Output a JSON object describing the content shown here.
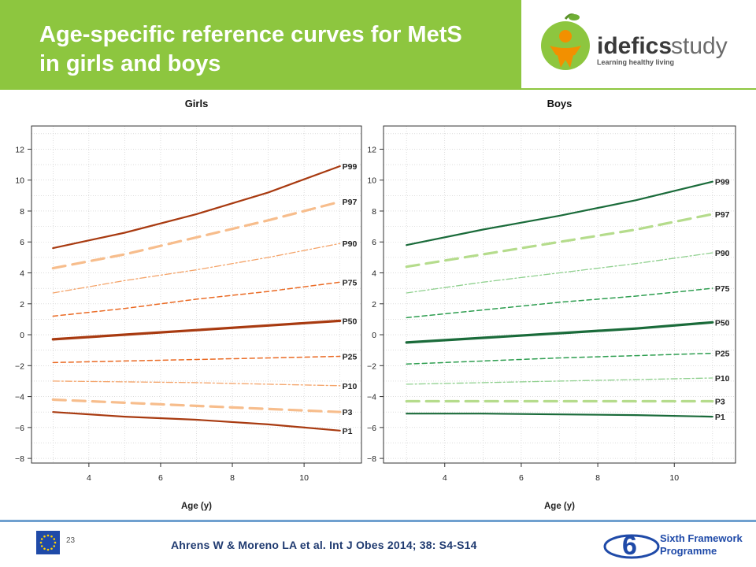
{
  "header": {
    "title_line1": "Age-specific reference curves for MetS",
    "title_line2": "in girls and boys"
  },
  "logo": {
    "brand_bold": "idefics",
    "brand_light": "study",
    "tagline": "Learning healthy living"
  },
  "footer": {
    "page_number": "23",
    "citation": "Ahrens W & Moreno LA  et al. Int J Obes 2014; 38: S4-S14",
    "programme_line1": "Sixth Framework",
    "programme_line2": "Programme"
  },
  "chart_data": [
    {
      "type": "line",
      "title": "Girls",
      "xlabel": "Age (y)",
      "ylabel": "",
      "xlim": [
        2.4,
        11.6
      ],
      "ylim": [
        -8.3,
        13.5
      ],
      "x_ticks": [
        4,
        6,
        8,
        10
      ],
      "y_ticks": [
        -8,
        -6,
        -4,
        -2,
        0,
        2,
        4,
        6,
        8,
        10,
        12
      ],
      "grid": true,
      "x": [
        3,
        5,
        7,
        9,
        11
      ],
      "series": [
        {
          "name": "P99",
          "values": [
            5.6,
            6.6,
            7.8,
            9.2,
            10.9
          ],
          "color": "#a83a10",
          "style": "solid",
          "width": 2.2
        },
        {
          "name": "P97",
          "values": [
            4.3,
            5.2,
            6.3,
            7.4,
            8.6
          ],
          "color": "#f7bd8c",
          "style": "longdash",
          "width": 3.2
        },
        {
          "name": "P90",
          "values": [
            2.7,
            3.5,
            4.2,
            5.0,
            5.9
          ],
          "color": "#f4a46a",
          "style": "dashdot",
          "width": 1.3
        },
        {
          "name": "P75",
          "values": [
            1.2,
            1.7,
            2.3,
            2.8,
            3.4
          ],
          "color": "#ea6a24",
          "style": "dash",
          "width": 1.5
        },
        {
          "name": "P50",
          "values": [
            -0.3,
            0.0,
            0.3,
            0.6,
            0.9
          ],
          "color": "#a83a10",
          "style": "solid",
          "width": 3.2
        },
        {
          "name": "P25",
          "values": [
            -1.8,
            -1.7,
            -1.6,
            -1.5,
            -1.4
          ],
          "color": "#ea6a24",
          "style": "dash",
          "width": 1.5
        },
        {
          "name": "P10",
          "values": [
            -3.0,
            -3.05,
            -3.1,
            -3.2,
            -3.3
          ],
          "color": "#f4a46a",
          "style": "dashdot",
          "width": 1.3
        },
        {
          "name": "P3",
          "values": [
            -4.2,
            -4.4,
            -4.6,
            -4.8,
            -5.0
          ],
          "color": "#f7bd8c",
          "style": "longdash",
          "width": 3.2
        },
        {
          "name": "P1",
          "values": [
            -5.0,
            -5.3,
            -5.5,
            -5.8,
            -6.2
          ],
          "color": "#a83a10",
          "style": "solid",
          "width": 2.2
        }
      ]
    },
    {
      "type": "line",
      "title": "Boys",
      "xlabel": "Age (y)",
      "ylabel": "",
      "xlim": [
        2.4,
        11.6
      ],
      "ylim": [
        -8.3,
        13.5
      ],
      "x_ticks": [
        4,
        6,
        8,
        10
      ],
      "y_ticks": [
        -8,
        -6,
        -4,
        -2,
        0,
        2,
        4,
        6,
        8,
        10,
        12
      ],
      "grid": true,
      "x": [
        3,
        5,
        7,
        9,
        11
      ],
      "series": [
        {
          "name": "P99",
          "values": [
            5.8,
            6.8,
            7.7,
            8.7,
            9.9
          ],
          "color": "#1a6b3a",
          "style": "solid",
          "width": 2.2
        },
        {
          "name": "P97",
          "values": [
            4.4,
            5.2,
            6.0,
            6.8,
            7.8
          ],
          "color": "#b5dc8c",
          "style": "longdash",
          "width": 3.2
        },
        {
          "name": "P90",
          "values": [
            2.7,
            3.4,
            4.0,
            4.6,
            5.3
          ],
          "color": "#8fd08e",
          "style": "dashdot",
          "width": 1.3
        },
        {
          "name": "P75",
          "values": [
            1.1,
            1.6,
            2.1,
            2.5,
            3.0
          ],
          "color": "#2e9e50",
          "style": "dash",
          "width": 1.5
        },
        {
          "name": "P50",
          "values": [
            -0.5,
            -0.2,
            0.1,
            0.4,
            0.8
          ],
          "color": "#1a6b3a",
          "style": "solid",
          "width": 3.2
        },
        {
          "name": "P25",
          "values": [
            -1.9,
            -1.7,
            -1.5,
            -1.35,
            -1.2
          ],
          "color": "#2e9e50",
          "style": "dash",
          "width": 1.5
        },
        {
          "name": "P10",
          "values": [
            -3.2,
            -3.1,
            -3.0,
            -2.9,
            -2.8
          ],
          "color": "#8fd08e",
          "style": "dashdot",
          "width": 1.3
        },
        {
          "name": "P3",
          "values": [
            -4.3,
            -4.3,
            -4.3,
            -4.3,
            -4.3
          ],
          "color": "#b5dc8c",
          "style": "longdash",
          "width": 3.2
        },
        {
          "name": "P1",
          "values": [
            -5.1,
            -5.1,
            -5.15,
            -5.2,
            -5.3
          ],
          "color": "#1a6b3a",
          "style": "solid",
          "width": 2.2
        }
      ]
    }
  ]
}
